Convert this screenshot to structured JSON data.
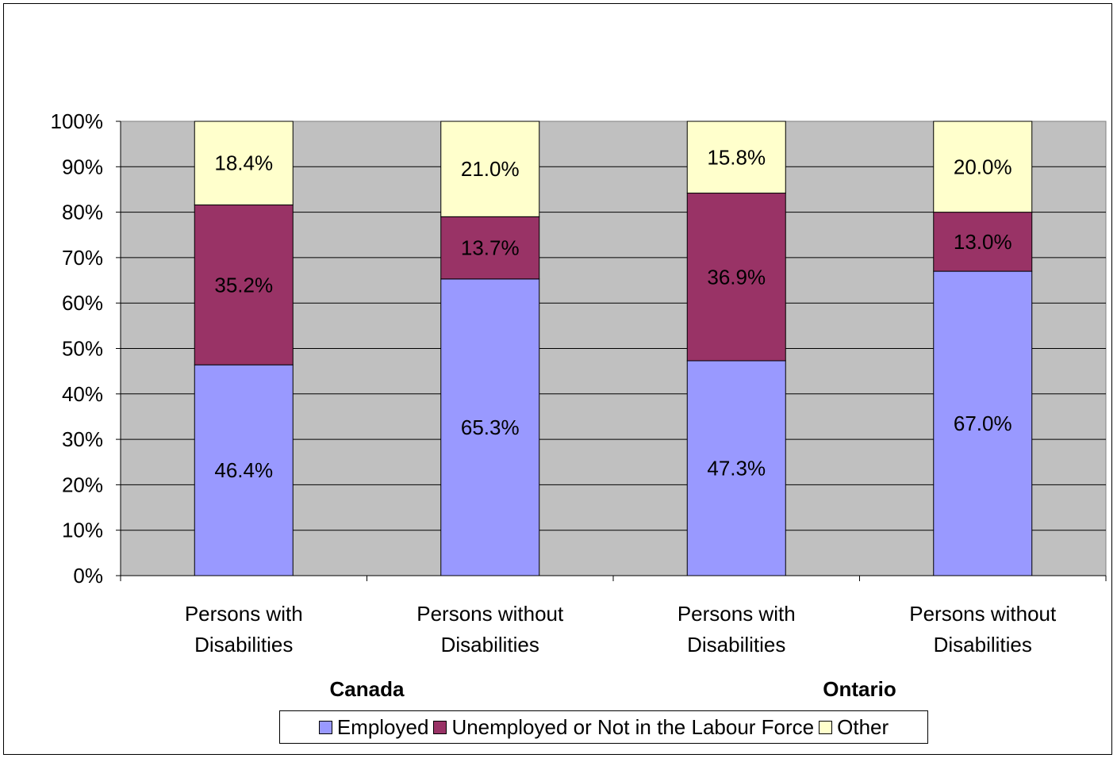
{
  "chart_data": {
    "type": "bar",
    "stacked": true,
    "categories": [
      [
        "Persons with",
        "Disabilities"
      ],
      [
        "Persons without",
        "Disabilities"
      ],
      [
        "Persons with",
        "Disabilities"
      ],
      [
        "Persons without",
        "Disabilities"
      ]
    ],
    "groups": [
      {
        "label": "Canada",
        "categories": [
          0,
          1
        ]
      },
      {
        "label": "Ontario",
        "categories": [
          2,
          3
        ]
      }
    ],
    "series": [
      {
        "name": "Employed",
        "color": "#9999ff",
        "values": [
          46.4,
          65.3,
          47.3,
          67.0
        ],
        "labels": [
          "46.4%",
          "65.3%",
          "47.3%",
          "67.0%"
        ]
      },
      {
        "name": "Unemployed or Not in the Labour Force",
        "color": "#993366",
        "values": [
          35.2,
          13.7,
          36.9,
          13.0
        ],
        "labels": [
          "35.2%",
          "13.7%",
          "36.9%",
          "13.0%"
        ]
      },
      {
        "name": "Other",
        "color": "#ffffcc",
        "values": [
          18.4,
          21.0,
          15.8,
          20.0
        ],
        "labels": [
          "18.4%",
          "21.0%",
          "15.8%",
          "20.0%"
        ]
      }
    ],
    "yticks": [
      "0%",
      "10%",
      "20%",
      "30%",
      "40%",
      "50%",
      "60%",
      "70%",
      "80%",
      "90%",
      "100%"
    ],
    "ylim": [
      0,
      100
    ],
    "grid": true,
    "plot_background": "#c0c0c0",
    "legend": "bottom"
  }
}
